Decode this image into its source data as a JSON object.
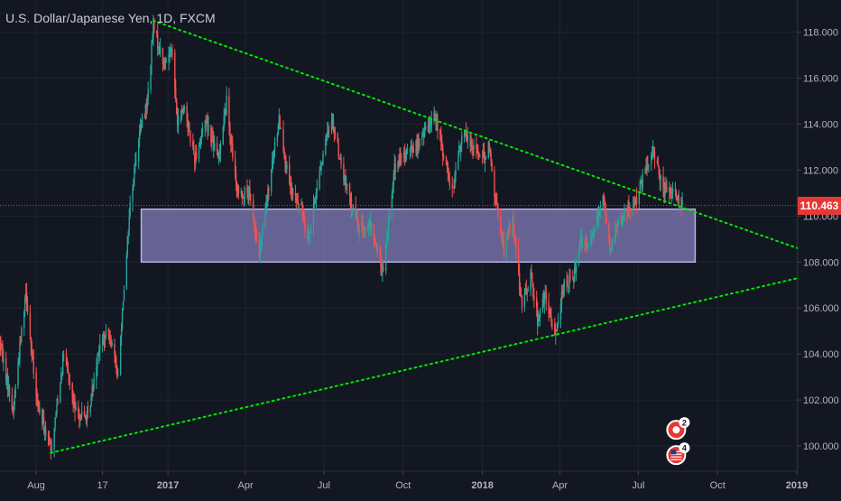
{
  "header": {
    "title": "U.S. Dollar/Japanese Yen, 1D, FXCM"
  },
  "colors": {
    "background": "#131722",
    "grid": "#1f2331",
    "axis_text": "#b2b5be",
    "up": "#26a69a",
    "down": "#ef5350",
    "trendline": "#00e600",
    "zone_fill": "#8e86c9",
    "price_line": "#e53935",
    "price_tag": "#e53935"
  },
  "chart_data": {
    "type": "candlestick",
    "symbol": "U.S. Dollar/Japanese Yen",
    "interval": "1D",
    "source": "FXCM",
    "x_labels": [
      "Aug",
      "17",
      "2017",
      "Apr",
      "Jul",
      "Oct",
      "2018",
      "Apr",
      "Jul",
      "Oct",
      "2019"
    ],
    "x_label_dates": [
      "2016-08-01",
      "2016-10-17",
      "2017-01-01",
      "2017-04-01",
      "2017-07-01",
      "2017-10-01",
      "2018-01-01",
      "2018-04-01",
      "2018-07-01",
      "2018-10-01",
      "2019-01-01"
    ],
    "x_range": [
      "2016-06-20",
      "2019-01-02"
    ],
    "y_ticks": [
      100,
      102,
      104,
      106,
      108,
      110,
      112,
      114,
      116,
      118
    ],
    "y_tick_labels": [
      "100.000",
      "102.000",
      "104.000",
      "106.000",
      "108.000",
      "110.000",
      "112.000",
      "114.000",
      "116.000",
      "118.000"
    ],
    "y_range": [
      98.9,
      119.4
    ],
    "last_price": 110.463,
    "last_price_label": "110.463",
    "price_path": [
      [
        "2016-06-20",
        104.5
      ],
      [
        "2016-07-05",
        101.5
      ],
      [
        "2016-07-20",
        106.8
      ],
      [
        "2016-08-01",
        102.0
      ],
      [
        "2016-08-18",
        99.8
      ],
      [
        "2016-09-02",
        104.0
      ],
      [
        "2016-09-15",
        101.5
      ],
      [
        "2016-09-30",
        101.2
      ],
      [
        "2016-10-12",
        104.2
      ],
      [
        "2016-10-25",
        105.0
      ],
      [
        "2016-11-04",
        103.0
      ],
      [
        "2016-11-10",
        106.5
      ],
      [
        "2016-11-18",
        110.5
      ],
      [
        "2016-11-28",
        113.5
      ],
      [
        "2016-12-08",
        115.0
      ],
      [
        "2016-12-15",
        118.2
      ],
      [
        "2016-12-28",
        116.5
      ],
      [
        "2017-01-05",
        117.5
      ],
      [
        "2017-01-12",
        114.0
      ],
      [
        "2017-01-20",
        114.8
      ],
      [
        "2017-02-01",
        112.5
      ],
      [
        "2017-02-14",
        114.2
      ],
      [
        "2017-02-28",
        112.5
      ],
      [
        "2017-03-10",
        115.0
      ],
      [
        "2017-03-22",
        111.0
      ],
      [
        "2017-04-05",
        111.0
      ],
      [
        "2017-04-17",
        108.3
      ],
      [
        "2017-05-01",
        112.0
      ],
      [
        "2017-05-10",
        114.3
      ],
      [
        "2017-05-22",
        111.2
      ],
      [
        "2017-06-05",
        110.3
      ],
      [
        "2017-06-14",
        109.0
      ],
      [
        "2017-06-26",
        112.0
      ],
      [
        "2017-07-10",
        114.3
      ],
      [
        "2017-07-25",
        111.5
      ],
      [
        "2017-08-10",
        109.5
      ],
      [
        "2017-08-25",
        109.5
      ],
      [
        "2017-09-08",
        107.5
      ],
      [
        "2017-09-20",
        112.0
      ],
      [
        "2017-10-05",
        112.7
      ],
      [
        "2017-10-20",
        113.2
      ],
      [
        "2017-11-06",
        114.5
      ],
      [
        "2017-11-15",
        113.0
      ],
      [
        "2017-11-27",
        111.0
      ],
      [
        "2017-12-08",
        113.5
      ],
      [
        "2017-12-20",
        113.2
      ],
      [
        "2018-01-02",
        112.5
      ],
      [
        "2018-01-08",
        113.2
      ],
      [
        "2018-01-15",
        111.0
      ],
      [
        "2018-01-26",
        108.5
      ],
      [
        "2018-02-05",
        110.0
      ],
      [
        "2018-02-16",
        106.0
      ],
      [
        "2018-02-26",
        107.5
      ],
      [
        "2018-03-06",
        105.5
      ],
      [
        "2018-03-14",
        106.5
      ],
      [
        "2018-03-26",
        104.8
      ],
      [
        "2018-04-05",
        107.0
      ],
      [
        "2018-04-16",
        107.2
      ],
      [
        "2018-04-25",
        109.0
      ],
      [
        "2018-05-08",
        109.0
      ],
      [
        "2018-05-21",
        111.0
      ],
      [
        "2018-05-29",
        108.5
      ],
      [
        "2018-06-08",
        109.7
      ],
      [
        "2018-06-20",
        110.3
      ],
      [
        "2018-06-29",
        110.8
      ],
      [
        "2018-07-10",
        112.0
      ],
      [
        "2018-07-19",
        112.8
      ],
      [
        "2018-07-31",
        111.0
      ],
      [
        "2018-08-08",
        111.2
      ],
      [
        "2018-08-14",
        110.8
      ],
      [
        "2018-08-21",
        110.5
      ]
    ],
    "trendlines": [
      {
        "name": "upper",
        "points": [
          [
            "2016-12-15",
            118.5
          ],
          [
            "2019-01-02",
            108.6
          ]
        ],
        "style": "dotted"
      },
      {
        "name": "lower",
        "points": [
          [
            "2016-08-18",
            99.7
          ],
          [
            "2019-01-02",
            107.3
          ]
        ],
        "style": "dotted"
      }
    ],
    "zone": {
      "x0": "2016-12-01",
      "x1": "2018-09-05",
      "y_low": 108.0,
      "y_high": 110.3
    },
    "event_markers": [
      {
        "label": "2",
        "date": "2018-08-14",
        "price": 100.7,
        "type": "economic-event"
      },
      {
        "label": "4",
        "date": "2018-08-14",
        "price": 99.6,
        "type": "us-flag-event"
      }
    ]
  }
}
